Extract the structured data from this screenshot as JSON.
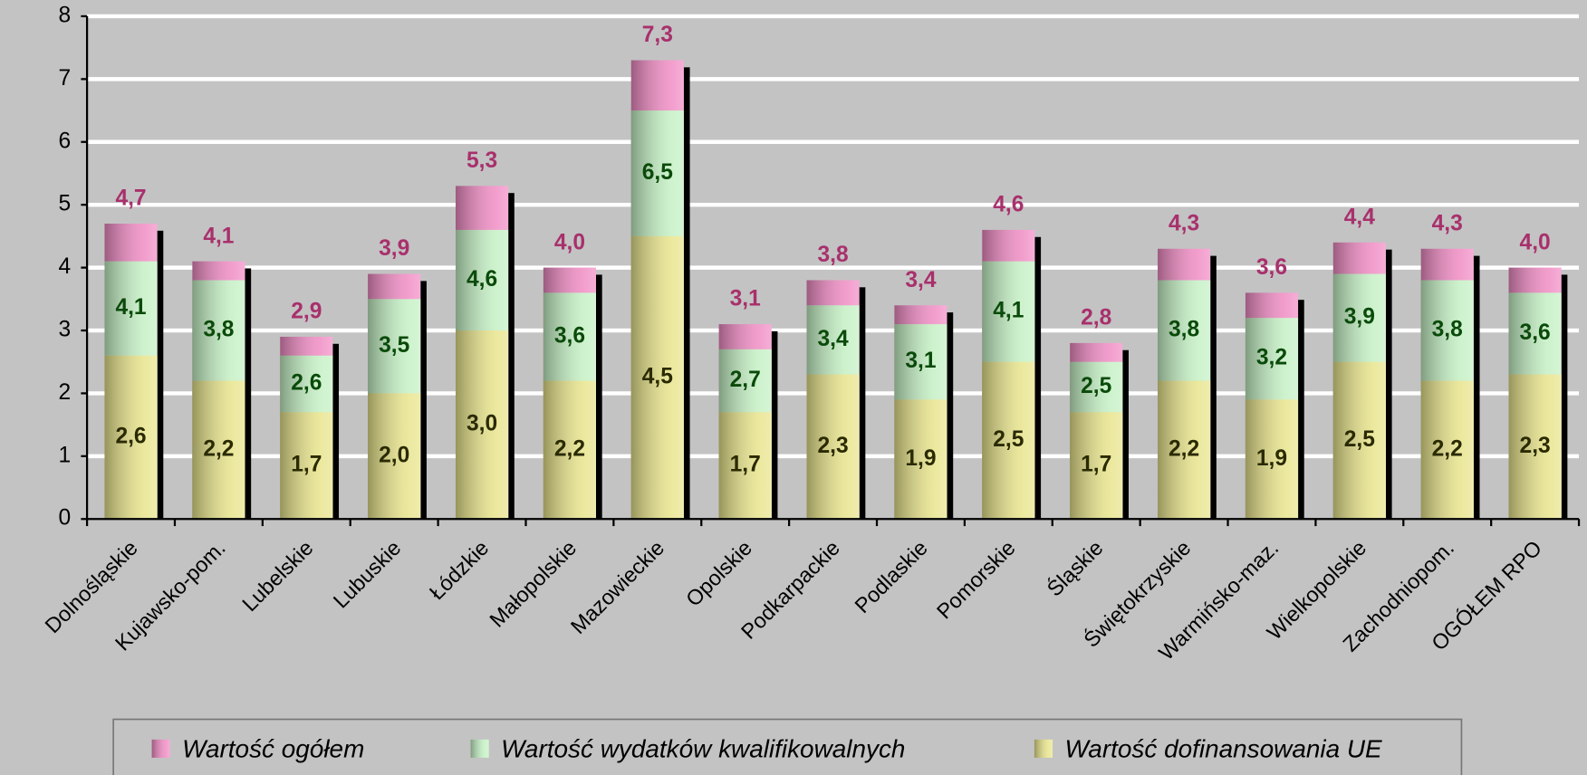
{
  "chart_data": {
    "type": "overlapping-bar",
    "categories": [
      "Dolnośląskie",
      "Kujawsko-pom.",
      "Lubelskie",
      "Lubuskie",
      "Łódzkie",
      "Małopolskie",
      "Mazowieckie",
      "Opolskie",
      "Podkarpackie",
      "Podlaskie",
      "Pomorskie",
      "Śląskie",
      "Świętokrzyskie",
      "Warmińsko-maz.",
      "Wielkopolskie",
      "Zachodniopom.",
      "OGÓŁEM RPO"
    ],
    "series": [
      {
        "name": "Wartość ogółem",
        "color": "#f08cc4",
        "values": [
          4.7,
          4.1,
          2.9,
          3.9,
          5.3,
          4.0,
          7.3,
          3.1,
          3.8,
          3.4,
          4.6,
          2.8,
          4.3,
          3.6,
          4.4,
          4.3,
          4.0
        ],
        "value_labels": [
          "4,7",
          "4,1",
          "2,9",
          "3,9",
          "5,3",
          "4,0",
          "7,3",
          "3,1",
          "3,8",
          "3,4",
          "4,6",
          "2,8",
          "4,3",
          "3,6",
          "4,4",
          "4,3",
          "4,0"
        ]
      },
      {
        "name": "Wartość wydatków kwalifikowalnych",
        "color": "#c4f0c4",
        "values": [
          4.1,
          3.8,
          2.6,
          3.5,
          4.6,
          3.6,
          6.5,
          2.7,
          3.4,
          3.1,
          4.1,
          2.5,
          3.8,
          3.2,
          3.9,
          3.8,
          3.6
        ],
        "value_labels": [
          "4,1",
          "3,8",
          "2,6",
          "3,5",
          "4,6",
          "3,6",
          "6,5",
          "2,7",
          "3,4",
          "3,1",
          "4,1",
          "2,5",
          "3,8",
          "3,2",
          "3,9",
          "3,8",
          "3,6"
        ]
      },
      {
        "name": "Wartość dofinansowania UE",
        "color": "#e8e48c",
        "values": [
          2.6,
          2.2,
          1.7,
          2.0,
          3.0,
          2.2,
          4.5,
          1.7,
          2.3,
          1.9,
          2.5,
          1.7,
          2.2,
          1.9,
          2.5,
          2.2,
          2.3
        ],
        "value_labels": [
          "2,6",
          "2,2",
          "1,7",
          "2,0",
          "3,0",
          "2,2",
          "4,5",
          "1,7",
          "2,3",
          "1,9",
          "2,5",
          "1,7",
          "2,2",
          "1,9",
          "2,5",
          "2,2",
          "2,3"
        ]
      }
    ],
    "ylim": [
      0,
      8
    ],
    "yticks": [
      0,
      1,
      2,
      3,
      4,
      5,
      6,
      7,
      8
    ],
    "grid": true,
    "legend": "bottom"
  }
}
